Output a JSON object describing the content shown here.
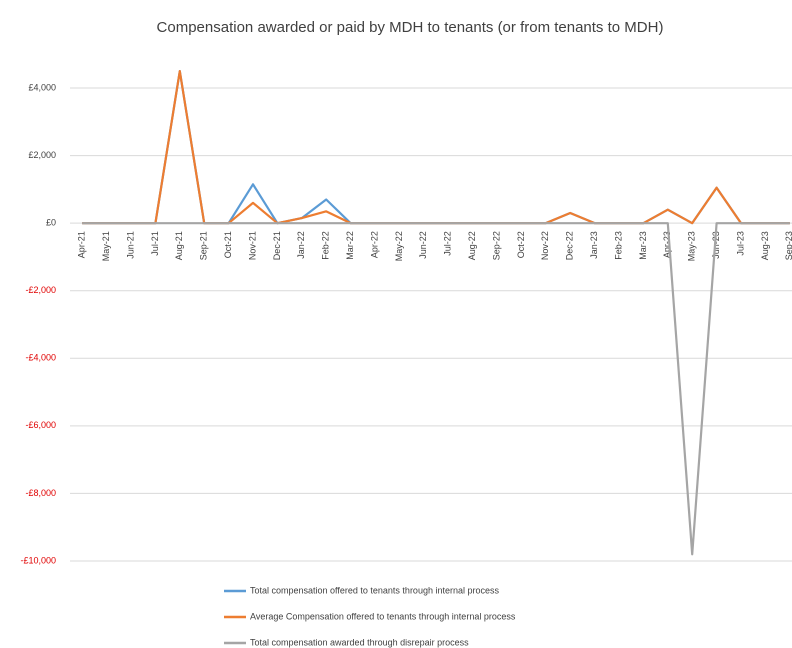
{
  "chart_data": {
    "type": "line",
    "title": "Compensation awarded or paid by MDH to tenants (or from tenants to MDH)",
    "categories": [
      "Apr-21",
      "May-21",
      "Jun-21",
      "Jul-21",
      "Aug-21",
      "Sep-21",
      "Oct-21",
      "Nov-21",
      "Dec-21",
      "Jan-22",
      "Feb-22",
      "Mar-22",
      "Apr-22",
      "May-22",
      "Jun-22",
      "Jul-22",
      "Aug-22",
      "Sep-22",
      "Oct-22",
      "Nov-22",
      "Dec-22",
      "Jan-23",
      "Feb-23",
      "Mar-23",
      "Apr-23",
      "May-23",
      "Jun-23",
      "Jul-23",
      "Aug-23",
      "Sep-23"
    ],
    "series": [
      {
        "name": "Total compensation offered to tenants through internal process",
        "color": "#5b9bd5",
        "values": [
          0,
          0,
          0,
          0,
          4500,
          0,
          0,
          1150,
          0,
          150,
          700,
          0,
          0,
          0,
          0,
          0,
          0,
          0,
          0,
          0,
          300,
          0,
          0,
          0,
          400,
          0,
          1050,
          0,
          0,
          0
        ]
      },
      {
        "name": "Average Compensation offered to tenants through internal process",
        "color": "#ed7d31",
        "values": [
          0,
          0,
          0,
          0,
          4500,
          0,
          0,
          600,
          0,
          150,
          350,
          0,
          0,
          0,
          0,
          0,
          0,
          0,
          0,
          0,
          300,
          0,
          0,
          0,
          400,
          0,
          1050,
          0,
          0,
          0
        ]
      },
      {
        "name": "Total compensation awarded through disrepair process",
        "color": "#a5a5a5",
        "values": [
          0,
          0,
          0,
          0,
          0,
          0,
          0,
          0,
          0,
          0,
          0,
          0,
          0,
          0,
          0,
          0,
          0,
          0,
          0,
          0,
          0,
          0,
          0,
          0,
          0,
          -9800,
          0,
          0,
          0,
          0
        ]
      }
    ],
    "ylim": [
      -10000,
      5000
    ],
    "yticks": [
      {
        "value": 4000,
        "label": "£4,000"
      },
      {
        "value": 2000,
        "label": "£2,000"
      },
      {
        "value": 0,
        "label": "£0"
      },
      {
        "value": -2000,
        "label": "-£2,000"
      },
      {
        "value": -4000,
        "label": "-£4,000"
      },
      {
        "value": -6000,
        "label": "-£6,000"
      },
      {
        "value": -8000,
        "label": "-£8,000"
      },
      {
        "value": -10000,
        "label": "-£10,000"
      }
    ],
    "grid": true,
    "negative_tick_color": "#e00000",
    "legend": "bottom"
  }
}
